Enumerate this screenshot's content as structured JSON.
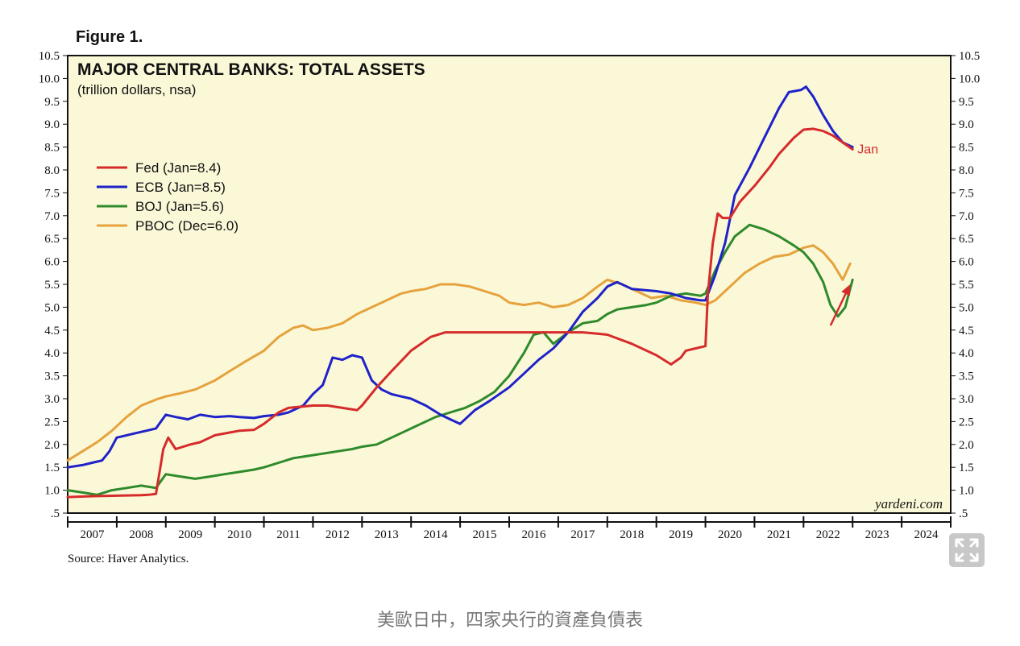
{
  "figure_label": "Figure 1.",
  "source_text": "Source: Haver Analytics.",
  "caption": "美歐日中，四家央行的資產負債表",
  "watermark": "yardeni.com",
  "expand_icon": "expand-arrows-icon",
  "chart_data": {
    "type": "line",
    "title": "MAJOR CENTRAL BANKS: TOTAL ASSETS",
    "subtitle": "(trillion dollars, nsa)",
    "ylim": [
      0.5,
      10.5
    ],
    "y_ticks": [
      "10.5",
      "10.0",
      "9.5",
      "9.0",
      "8.5",
      "8.0",
      "7.5",
      "7.0",
      "6.5",
      "6.0",
      "5.5",
      "5.0",
      "4.5",
      "4.0",
      "3.5",
      "3.0",
      "2.5",
      "2.0",
      "1.5",
      "1.0",
      ".5"
    ],
    "y_tick_values": [
      10.5,
      10.0,
      9.5,
      9.0,
      8.5,
      8.0,
      7.5,
      7.0,
      6.5,
      6.0,
      5.5,
      5.0,
      4.5,
      4.0,
      3.5,
      3.0,
      2.5,
      2.0,
      1.5,
      1.0,
      0.5
    ],
    "xlim": [
      2007,
      2025
    ],
    "x_ticks": [
      "2007",
      "2008",
      "2009",
      "2010",
      "2011",
      "2012",
      "2013",
      "2014",
      "2015",
      "2016",
      "2017",
      "2018",
      "2019",
      "2020",
      "2021",
      "2022",
      "2023",
      "2024"
    ],
    "grid": false,
    "legend_position": "top-left",
    "background_color": "#fbf8d8",
    "annotation": {
      "text": "Jan",
      "color": "#d62b2b",
      "x": 2023.1,
      "y": 8.45
    },
    "arrow": {
      "color": "#d62b2b",
      "from": [
        2022.55,
        4.6
      ],
      "to": [
        2022.95,
        5.5
      ]
    },
    "series": [
      {
        "name": "Fed (Jan=8.4)",
        "color": "#d62b2b",
        "x": [
          2007.0,
          2007.5,
          2008.0,
          2008.5,
          2008.65,
          2008.8,
          2008.95,
          2009.05,
          2009.2,
          2009.5,
          2009.7,
          2010.0,
          2010.3,
          2010.5,
          2010.8,
          2011.0,
          2011.3,
          2011.5,
          2011.7,
          2012.0,
          2012.3,
          2012.6,
          2012.9,
          2013.0,
          2013.3,
          2013.6,
          2014.0,
          2014.4,
          2014.7,
          2015.0,
          2015.5,
          2016.0,
          2016.5,
          2017.0,
          2017.5,
          2017.8,
          2018.0,
          2018.5,
          2019.0,
          2019.3,
          2019.5,
          2019.6,
          2019.8,
          2020.0,
          2020.05,
          2020.15,
          2020.25,
          2020.35,
          2020.5,
          2020.7,
          2021.0,
          2021.3,
          2021.5,
          2021.8,
          2022.0,
          2022.2,
          2022.4,
          2022.6,
          2022.8,
          2023.0
        ],
        "y": [
          0.85,
          0.87,
          0.88,
          0.89,
          0.9,
          0.92,
          1.9,
          2.15,
          1.9,
          2.0,
          2.05,
          2.2,
          2.26,
          2.3,
          2.32,
          2.45,
          2.7,
          2.8,
          2.82,
          2.85,
          2.85,
          2.8,
          2.75,
          2.85,
          3.25,
          3.6,
          4.05,
          4.35,
          4.45,
          4.45,
          4.45,
          4.45,
          4.45,
          4.45,
          4.45,
          4.42,
          4.4,
          4.2,
          3.95,
          3.75,
          3.9,
          4.05,
          4.1,
          4.15,
          5.3,
          6.4,
          7.05,
          6.95,
          6.95,
          7.3,
          7.65,
          8.05,
          8.35,
          8.7,
          8.88,
          8.9,
          8.85,
          8.75,
          8.6,
          8.45
        ]
      },
      {
        "name": "ECB (Jan=8.5)",
        "color": "#1f22c8",
        "x": [
          2007.0,
          2007.3,
          2007.5,
          2007.7,
          2007.85,
          2008.0,
          2008.2,
          2008.4,
          2008.6,
          2008.8,
          2009.0,
          2009.2,
          2009.45,
          2009.7,
          2010.0,
          2010.3,
          2010.5,
          2010.8,
          2011.0,
          2011.3,
          2011.5,
          2011.8,
          2012.0,
          2012.2,
          2012.4,
          2012.6,
          2012.8,
          2013.0,
          2013.2,
          2013.4,
          2013.6,
          2013.8,
          2014.0,
          2014.3,
          2014.6,
          2014.8,
          2015.0,
          2015.3,
          2015.6,
          2016.0,
          2016.3,
          2016.6,
          2016.9,
          2017.2,
          2017.5,
          2017.8,
          2018.0,
          2018.2,
          2018.5,
          2019.0,
          2019.3,
          2019.6,
          2019.9,
          2020.0,
          2020.2,
          2020.4,
          2020.6,
          2020.9,
          2021.2,
          2021.5,
          2021.7,
          2021.95,
          2022.05,
          2022.2,
          2022.4,
          2022.6,
          2022.8,
          2023.0
        ],
        "y": [
          1.5,
          1.55,
          1.6,
          1.65,
          1.85,
          2.15,
          2.2,
          2.25,
          2.3,
          2.35,
          2.65,
          2.6,
          2.55,
          2.65,
          2.6,
          2.62,
          2.6,
          2.58,
          2.62,
          2.65,
          2.7,
          2.85,
          3.1,
          3.3,
          3.9,
          3.85,
          3.95,
          3.9,
          3.4,
          3.2,
          3.1,
          3.05,
          3.0,
          2.85,
          2.65,
          2.55,
          2.45,
          2.75,
          2.95,
          3.25,
          3.55,
          3.85,
          4.1,
          4.45,
          4.9,
          5.2,
          5.45,
          5.55,
          5.4,
          5.35,
          5.3,
          5.2,
          5.15,
          5.15,
          5.7,
          6.4,
          7.45,
          8.05,
          8.7,
          9.35,
          9.7,
          9.75,
          9.82,
          9.6,
          9.2,
          8.85,
          8.6,
          8.5
        ]
      },
      {
        "name": "BOJ (Jan=5.6)",
        "color": "#2e8a2b",
        "x": [
          2007.0,
          2007.3,
          2007.6,
          2007.9,
          2008.2,
          2008.5,
          2008.8,
          2009.0,
          2009.3,
          2009.6,
          2009.9,
          2010.2,
          2010.5,
          2010.8,
          2011.0,
          2011.3,
          2011.6,
          2011.9,
          2012.2,
          2012.5,
          2012.8,
          2013.0,
          2013.3,
          2013.6,
          2013.9,
          2014.2,
          2014.5,
          2014.8,
          2015.1,
          2015.4,
          2015.7,
          2016.0,
          2016.3,
          2016.5,
          2016.7,
          2016.9,
          2017.2,
          2017.5,
          2017.8,
          2018.0,
          2018.2,
          2018.5,
          2018.8,
          2019.0,
          2019.3,
          2019.6,
          2019.9,
          2020.0,
          2020.2,
          2020.4,
          2020.6,
          2020.9,
          2021.2,
          2021.5,
          2021.8,
          2022.0,
          2022.2,
          2022.4,
          2022.55,
          2022.7,
          2022.85,
          2023.0
        ],
        "y": [
          1.0,
          0.95,
          0.9,
          1.0,
          1.05,
          1.1,
          1.05,
          1.35,
          1.3,
          1.25,
          1.3,
          1.35,
          1.4,
          1.45,
          1.5,
          1.6,
          1.7,
          1.75,
          1.8,
          1.85,
          1.9,
          1.95,
          2.0,
          2.15,
          2.3,
          2.45,
          2.6,
          2.7,
          2.8,
          2.95,
          3.15,
          3.5,
          4.0,
          4.4,
          4.45,
          4.2,
          4.45,
          4.65,
          4.7,
          4.85,
          4.95,
          5.0,
          5.05,
          5.1,
          5.25,
          5.3,
          5.25,
          5.3,
          5.8,
          6.2,
          6.55,
          6.8,
          6.7,
          6.55,
          6.35,
          6.2,
          5.95,
          5.55,
          5.05,
          4.8,
          5.0,
          5.6
        ]
      },
      {
        "name": "PBOC (Dec=6.0)",
        "color": "#e6a23c",
        "x": [
          2007.0,
          2007.3,
          2007.6,
          2007.9,
          2008.2,
          2008.5,
          2008.8,
          2009.0,
          2009.3,
          2009.6,
          2010.0,
          2010.3,
          2010.6,
          2011.0,
          2011.3,
          2011.6,
          2011.8,
          2012.0,
          2012.3,
          2012.6,
          2012.9,
          2013.2,
          2013.5,
          2013.8,
          2014.0,
          2014.3,
          2014.6,
          2014.9,
          2015.2,
          2015.5,
          2015.8,
          2016.0,
          2016.3,
          2016.6,
          2016.9,
          2017.2,
          2017.5,
          2017.8,
          2018.0,
          2018.3,
          2018.6,
          2018.9,
          2019.2,
          2019.5,
          2019.8,
          2020.0,
          2020.2,
          2020.5,
          2020.8,
          2021.1,
          2021.4,
          2021.7,
          2022.0,
          2022.2,
          2022.4,
          2022.6,
          2022.8,
          2022.95
        ],
        "y": [
          1.65,
          1.85,
          2.05,
          2.3,
          2.6,
          2.85,
          2.98,
          3.05,
          3.12,
          3.2,
          3.4,
          3.6,
          3.8,
          4.05,
          4.35,
          4.55,
          4.6,
          4.5,
          4.55,
          4.65,
          4.85,
          5.0,
          5.15,
          5.3,
          5.35,
          5.4,
          5.5,
          5.5,
          5.45,
          5.35,
          5.25,
          5.1,
          5.05,
          5.1,
          5.0,
          5.05,
          5.2,
          5.45,
          5.6,
          5.5,
          5.35,
          5.2,
          5.25,
          5.15,
          5.1,
          5.05,
          5.15,
          5.45,
          5.75,
          5.95,
          6.1,
          6.15,
          6.3,
          6.35,
          6.2,
          5.95,
          5.6,
          5.95
        ]
      }
    ]
  }
}
